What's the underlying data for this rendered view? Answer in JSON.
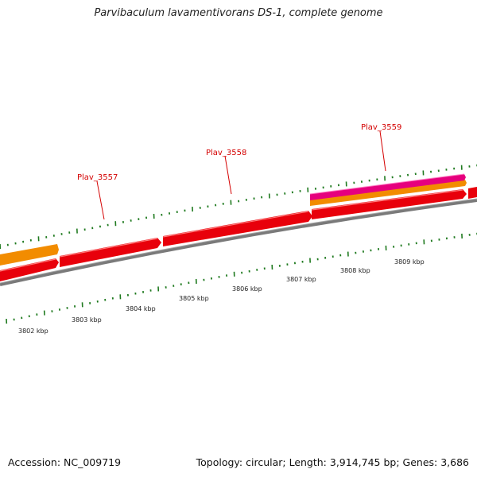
{
  "title": "Parvibaculum lavamentivorans DS-1, complete genome",
  "footer": {
    "accession": "Accession: NC_009719",
    "summary": "Topology: circular; Length: 3,914,745 bp; Genes: 3,686"
  },
  "gene_labels": [
    "Plav_3557",
    "Plav_3558",
    "Plav_3559"
  ],
  "scale_labels": [
    "3802 kbp",
    "3803 kbp",
    "3804 kbp",
    "3805 kbp",
    "3806 kbp",
    "3807 kbp",
    "3808 kbp",
    "3809 kbp"
  ],
  "colors": {
    "gene_red": "#e8000b",
    "gene_orange": "#f28c00",
    "gene_magenta": "#e6007e",
    "backbone": "#7a7a7a",
    "tick_green": "#1f7a1f",
    "label_red": "#d40000"
  }
}
